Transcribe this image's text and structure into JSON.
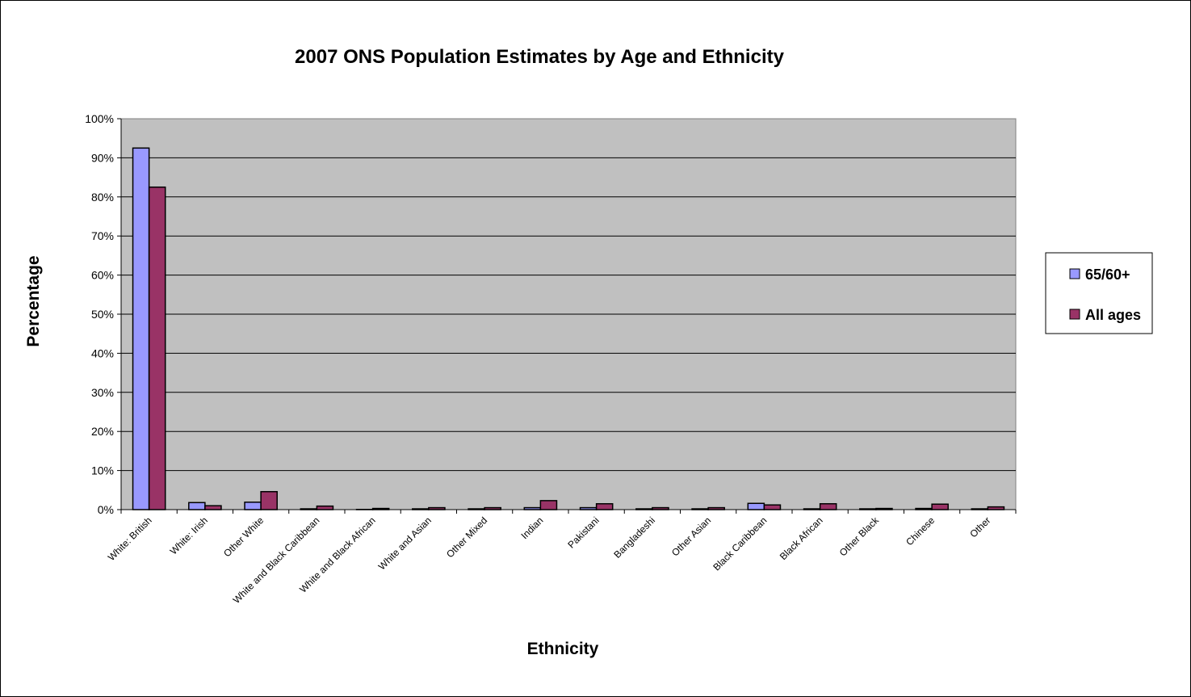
{
  "chart_data": {
    "type": "bar",
    "title": "2007 ONS Population Estimates by Age and Ethnicity",
    "xlabel": "Ethnicity",
    "ylabel": "Percentage",
    "ylim": [
      0,
      100
    ],
    "yticks": [
      "0%",
      "10%",
      "20%",
      "30%",
      "40%",
      "50%",
      "60%",
      "70%",
      "80%",
      "90%",
      "100%"
    ],
    "grid": true,
    "plot_background": "#c0c0c0",
    "legend_position": "right",
    "categories": [
      "White: British",
      "White: Irish",
      "Other White",
      "White and Black Caribbean",
      "White and Black African",
      "White and Asian",
      "Other Mixed",
      "Indian",
      "Pakistani",
      "Bangladeshi",
      "Other Asian",
      "Black Caribbean",
      "Black African",
      "Other Black",
      "Chinese",
      "Other"
    ],
    "series": [
      {
        "name": "65/60+",
        "color": "#9999ff",
        "values": [
          92.5,
          1.8,
          1.9,
          0.2,
          0.05,
          0.2,
          0.2,
          0.5,
          0.5,
          0.2,
          0.2,
          1.6,
          0.2,
          0.2,
          0.3,
          0.2
        ]
      },
      {
        "name": "All ages",
        "color": "#993366",
        "values": [
          82.5,
          1.0,
          4.6,
          0.9,
          0.3,
          0.5,
          0.5,
          2.3,
          1.5,
          0.5,
          0.5,
          1.2,
          1.5,
          0.3,
          1.4,
          0.7
        ]
      }
    ]
  }
}
